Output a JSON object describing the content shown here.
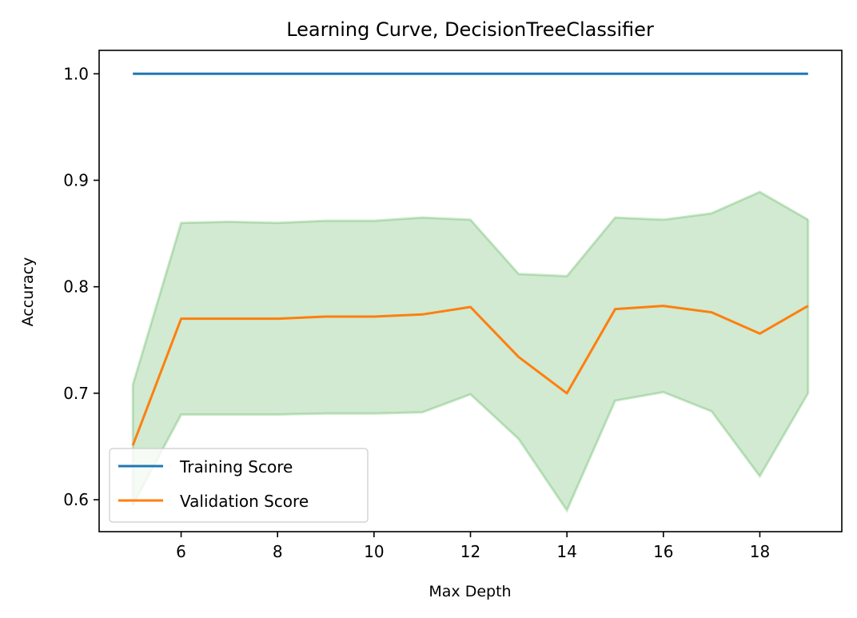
{
  "chart_data": {
    "type": "line",
    "title": "Learning Curve, DecisionTreeClassifier",
    "xlabel": "Max Depth",
    "ylabel": "Accuracy",
    "xlim": [
      4.3,
      19.7
    ],
    "ylim": [
      0.57,
      1.022
    ],
    "x_ticks": [
      6,
      8,
      10,
      12,
      14,
      16,
      18
    ],
    "x_tick_labels": [
      "6",
      "8",
      "10",
      "12",
      "14",
      "16",
      "18"
    ],
    "y_ticks": [
      0.6,
      0.7,
      0.8,
      0.9,
      1.0
    ],
    "y_tick_labels": [
      "0.6",
      "0.7",
      "0.8",
      "0.9",
      "1.0"
    ],
    "grid": false,
    "legend_position": "lower-left",
    "x": [
      5,
      6,
      7,
      8,
      9,
      10,
      11,
      12,
      13,
      14,
      15,
      16,
      17,
      18,
      19
    ],
    "series": [
      {
        "name": "Training Score",
        "color": "#1f77b4",
        "values": [
          1.0,
          1.0,
          1.0,
          1.0,
          1.0,
          1.0,
          1.0,
          1.0,
          1.0,
          1.0,
          1.0,
          1.0,
          1.0,
          1.0,
          1.0
        ]
      },
      {
        "name": "Validation Score",
        "color": "#ff7f0e",
        "values": [
          0.651,
          0.77,
          0.77,
          0.77,
          0.772,
          0.772,
          0.774,
          0.781,
          0.734,
          0.7,
          0.779,
          0.782,
          0.776,
          0.756,
          0.782
        ]
      }
    ],
    "band": {
      "color": "#2ca02c",
      "lower": [
        0.595,
        0.68,
        0.68,
        0.68,
        0.681,
        0.681,
        0.682,
        0.699,
        0.657,
        0.59,
        0.693,
        0.701,
        0.683,
        0.622,
        0.7
      ],
      "upper": [
        0.708,
        0.86,
        0.861,
        0.86,
        0.862,
        0.862,
        0.865,
        0.863,
        0.812,
        0.81,
        0.865,
        0.863,
        0.869,
        0.889,
        0.863
      ]
    }
  }
}
